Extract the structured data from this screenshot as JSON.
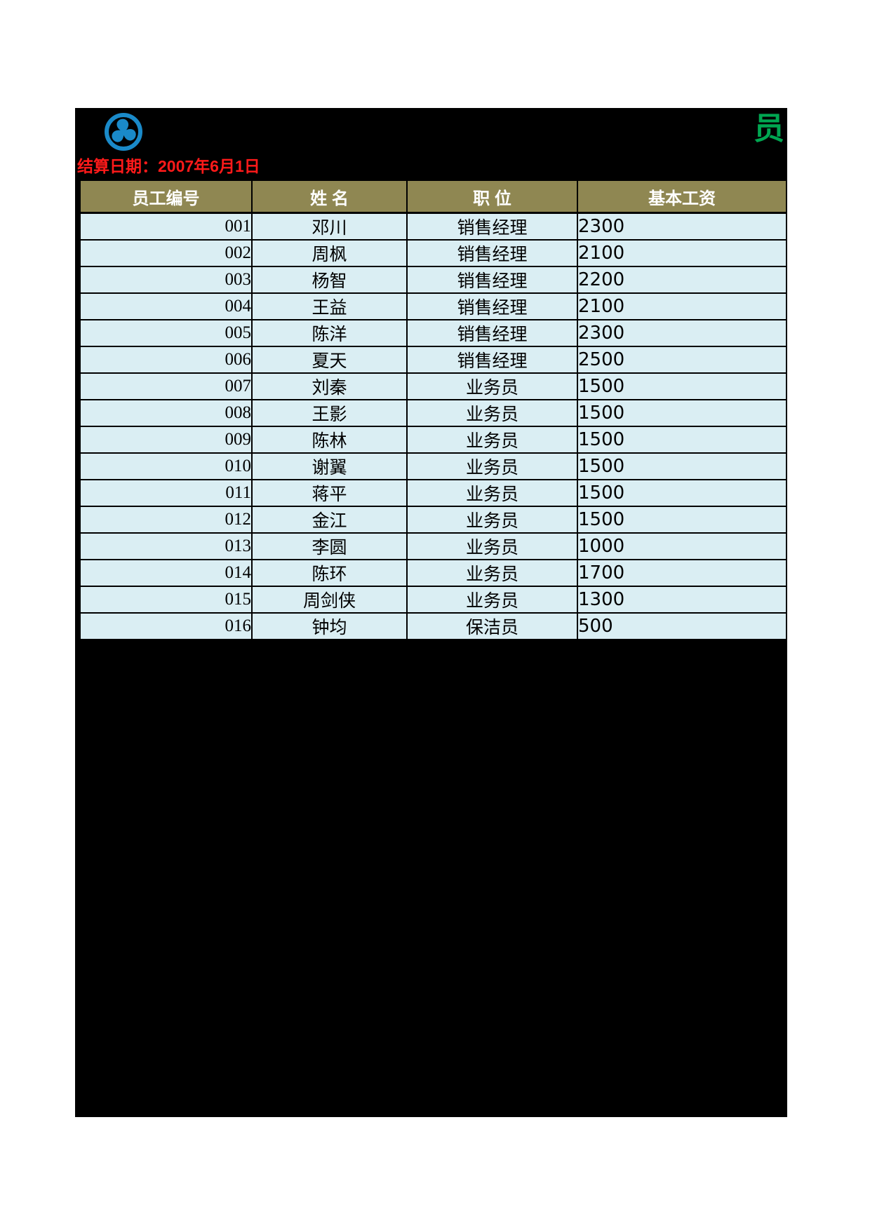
{
  "page": {
    "background": "#ffffff",
    "panel_background": "#000000"
  },
  "header": {
    "logo_icon": "pinwheel-reel-icon",
    "logo_color": "#1a8ac9",
    "title_partial": "员",
    "title_color": "#00A651",
    "settle_date_label": "结算日期：2007年6月1日",
    "settle_date_color": "#ff1a1a"
  },
  "table": {
    "header_bg": "#8f8752",
    "row_bg": "#DAEEF3",
    "border_color": "#000000",
    "columns": [
      "员工编号",
      "姓 名",
      "职 位",
      "基本工资"
    ],
    "rows": [
      {
        "id": "001",
        "name": "邓川",
        "position": "销售经理",
        "salary": "2300"
      },
      {
        "id": "002",
        "name": "周枫",
        "position": "销售经理",
        "salary": "2100"
      },
      {
        "id": "003",
        "name": "杨智",
        "position": "销售经理",
        "salary": "2200"
      },
      {
        "id": "004",
        "name": "王益",
        "position": "销售经理",
        "salary": "2100"
      },
      {
        "id": "005",
        "name": "陈洋",
        "position": "销售经理",
        "salary": "2300"
      },
      {
        "id": "006",
        "name": "夏天",
        "position": "销售经理",
        "salary": "2500"
      },
      {
        "id": "007",
        "name": "刘秦",
        "position": "业务员",
        "salary": "1500"
      },
      {
        "id": "008",
        "name": "王影",
        "position": "业务员",
        "salary": "1500"
      },
      {
        "id": "009",
        "name": "陈林",
        "position": "业务员",
        "salary": "1500"
      },
      {
        "id": "010",
        "name": "谢翼",
        "position": "业务员",
        "salary": "1500"
      },
      {
        "id": "011",
        "name": "蒋平",
        "position": "业务员",
        "salary": "1500"
      },
      {
        "id": "012",
        "name": "金江",
        "position": "业务员",
        "salary": "1500"
      },
      {
        "id": "013",
        "name": "李圆",
        "position": "业务员",
        "salary": "1000"
      },
      {
        "id": "014",
        "name": "陈环",
        "position": "业务员",
        "salary": "1700"
      },
      {
        "id": "015",
        "name": "周剑侠",
        "position": "业务员",
        "salary": "1300"
      },
      {
        "id": "016",
        "name": "钟均",
        "position": "保洁员",
        "salary": "500"
      }
    ]
  }
}
